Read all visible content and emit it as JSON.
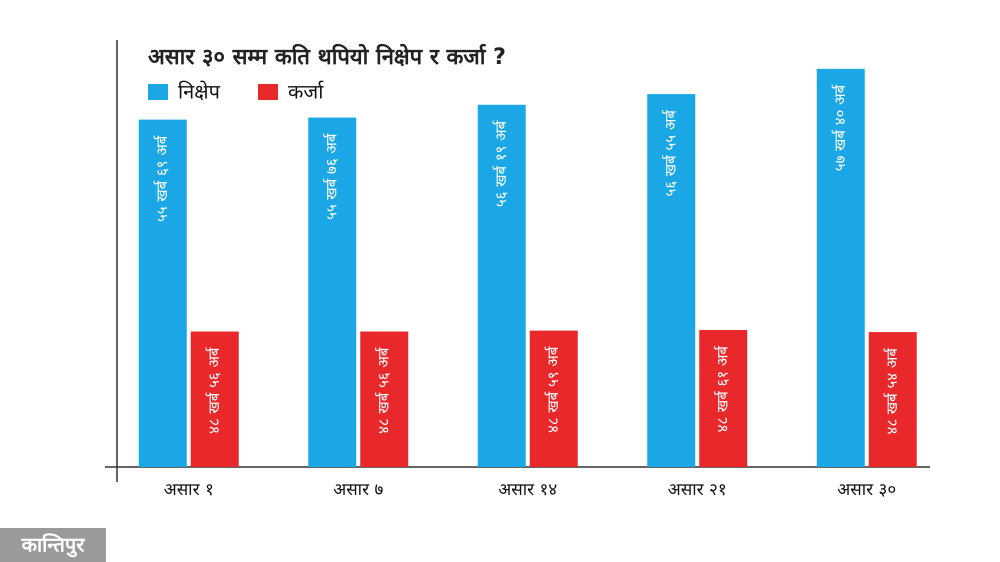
{
  "chart_data": {
    "type": "bar",
    "title": "असार ३० सम्म कति थपियो निक्षेप र कर्जा ?",
    "categories": [
      "असार १",
      "असार ७",
      "असार १४",
      "असार २१",
      "असार ३०"
    ],
    "series": [
      {
        "name": "निक्षेप",
        "color": "#1ba7e6",
        "values": [
          5569,
          5576,
          5619,
          5655,
          5740
        ],
        "value_labels": [
          "५५ खर्ब ६९ अर्ब",
          "५५ खर्ब ७६ अर्ब",
          "५६ खर्ब १९ अर्ब",
          "५६ खर्ब ५५ अर्ब",
          "५७ खर्ब ४० अर्ब"
        ]
      },
      {
        "name": "कर्जा",
        "color": "#e8282b",
        "values": [
          4856,
          4856,
          4859,
          4861,
          4854
        ],
        "value_labels": [
          "४८ खर्ब ५६ अर्ब",
          "४८ खर्ब ५६ अर्ब",
          "४८ खर्ब ५९ अर्ब",
          "४८ खर्ब ६१ अर्ब",
          "४८ खर्ब ५४ अर्ब"
        ]
      }
    ],
    "ylim": [
      4400,
      5800
    ],
    "legend": "top-left"
  },
  "watermark": "कान्तिपुर"
}
